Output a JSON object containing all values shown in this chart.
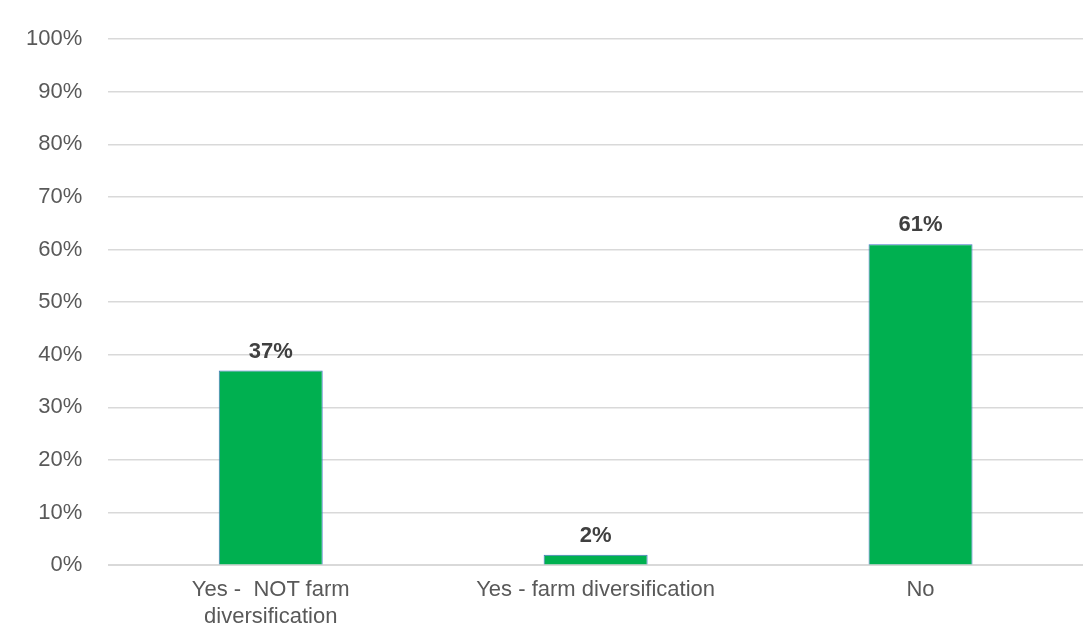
{
  "chart_data": {
    "type": "bar",
    "categories": [
      "Yes -  NOT farm diversification",
      "Yes - farm diversification",
      "No"
    ],
    "values": [
      37,
      2,
      61
    ],
    "color": "#00b050",
    "value_labels": [
      "37%",
      "2%",
      "61%"
    ],
    "ylim": [
      0,
      100
    ],
    "yticks": [
      {
        "value": 0,
        "label": "0%"
      },
      {
        "value": 10,
        "label": "10%"
      },
      {
        "value": 20,
        "label": "20%"
      },
      {
        "value": 30,
        "label": "30%"
      },
      {
        "value": 40,
        "label": "40%"
      },
      {
        "value": 50,
        "label": "50%"
      },
      {
        "value": 60,
        "label": "60%"
      },
      {
        "value": 70,
        "label": "70%"
      },
      {
        "value": 80,
        "label": "80%"
      },
      {
        "value": 90,
        "label": "90%"
      },
      {
        "value": 100,
        "label": "100%"
      }
    ],
    "grid": "y",
    "legend": false
  }
}
